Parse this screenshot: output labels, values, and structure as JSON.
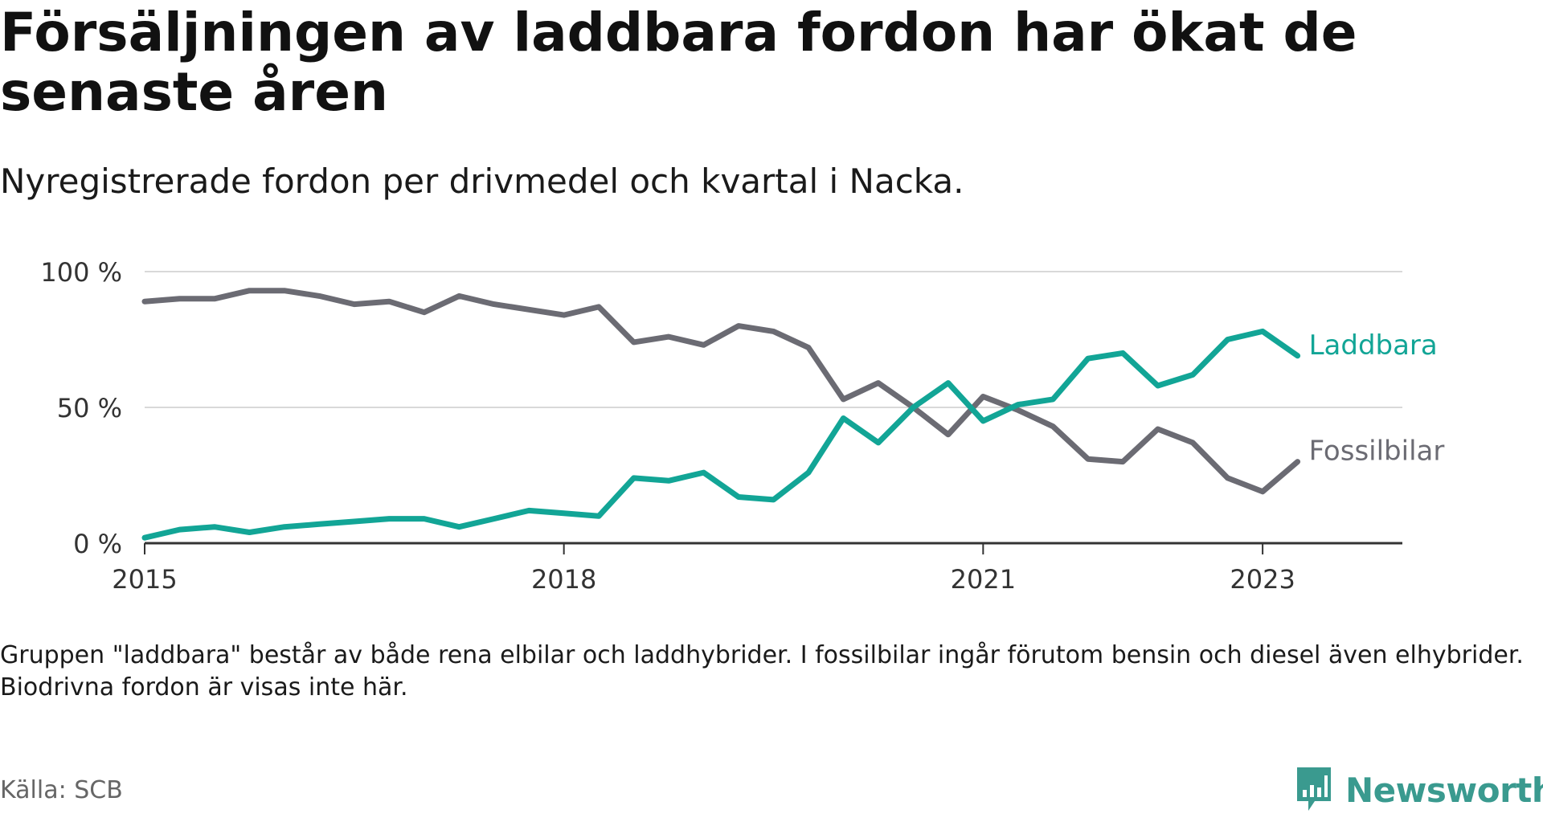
{
  "header": {
    "title": "Försäljningen av laddbara fordon har ökat de senaste åren",
    "subtitle": "Nyregistrerade fordon per drivmedel och kvartal i Nacka."
  },
  "footer": {
    "note": "Gruppen \"laddbara\" består av både rena elbilar och laddhybrider. I fossilbilar ingår förutom bensin och diesel även elhybrider. Biodrivna fordon är visas inte här.",
    "source": "Källa: SCB",
    "brand": "Newsworthy"
  },
  "colors": {
    "laddbara": "#12a596",
    "fossil": "#6b6b73",
    "grid": "#d9d9d9",
    "axis": "#333333",
    "brand": "#3a9a8f"
  },
  "chart_data": {
    "type": "line",
    "title": "Försäljningen av laddbara fordon har ökat de senaste åren",
    "subtitle": "Nyregistrerade fordon per drivmedel och kvartal i Nacka.",
    "xlabel": "",
    "ylabel": "",
    "ylim": [
      0,
      100
    ],
    "yticks": [
      0,
      50,
      100
    ],
    "ytick_labels": [
      "0 %",
      "50 %",
      "100 %"
    ],
    "xlim": [
      2015,
      2024
    ],
    "xticks": [
      2015,
      2018,
      2021,
      2023
    ],
    "xtick_labels": [
      "2015",
      "2018",
      "2021",
      "2023"
    ],
    "grid": true,
    "x": [
      2015.0,
      2015.25,
      2015.5,
      2015.75,
      2016.0,
      2016.25,
      2016.5,
      2016.75,
      2017.0,
      2017.25,
      2017.5,
      2017.75,
      2018.0,
      2018.25,
      2018.5,
      2018.75,
      2019.0,
      2019.25,
      2019.5,
      2019.75,
      2020.0,
      2020.25,
      2020.5,
      2020.75,
      2021.0,
      2021.25,
      2021.5,
      2021.75,
      2022.0,
      2022.25,
      2022.5,
      2022.75,
      2023.0,
      2023.25
    ],
    "series": [
      {
        "name": "Fossilbilar",
        "label": "Fossilbilar",
        "color": "#6b6b73",
        "values": [
          89,
          90,
          90,
          93,
          93,
          91,
          88,
          89,
          85,
          91,
          88,
          86,
          84,
          87,
          74,
          76,
          73,
          80,
          78,
          72,
          53,
          59,
          50,
          40,
          54,
          49,
          43,
          31,
          30,
          42,
          37,
          24,
          19,
          30
        ]
      },
      {
        "name": "Laddbara",
        "label": "Laddbara",
        "color": "#12a596",
        "values": [
          2,
          5,
          6,
          4,
          6,
          7,
          8,
          9,
          9,
          6,
          9,
          12,
          11,
          10,
          24,
          23,
          26,
          17,
          16,
          26,
          46,
          37,
          50,
          59,
          45,
          51,
          53,
          68,
          70,
          58,
          62,
          75,
          78,
          69
        ]
      }
    ]
  }
}
